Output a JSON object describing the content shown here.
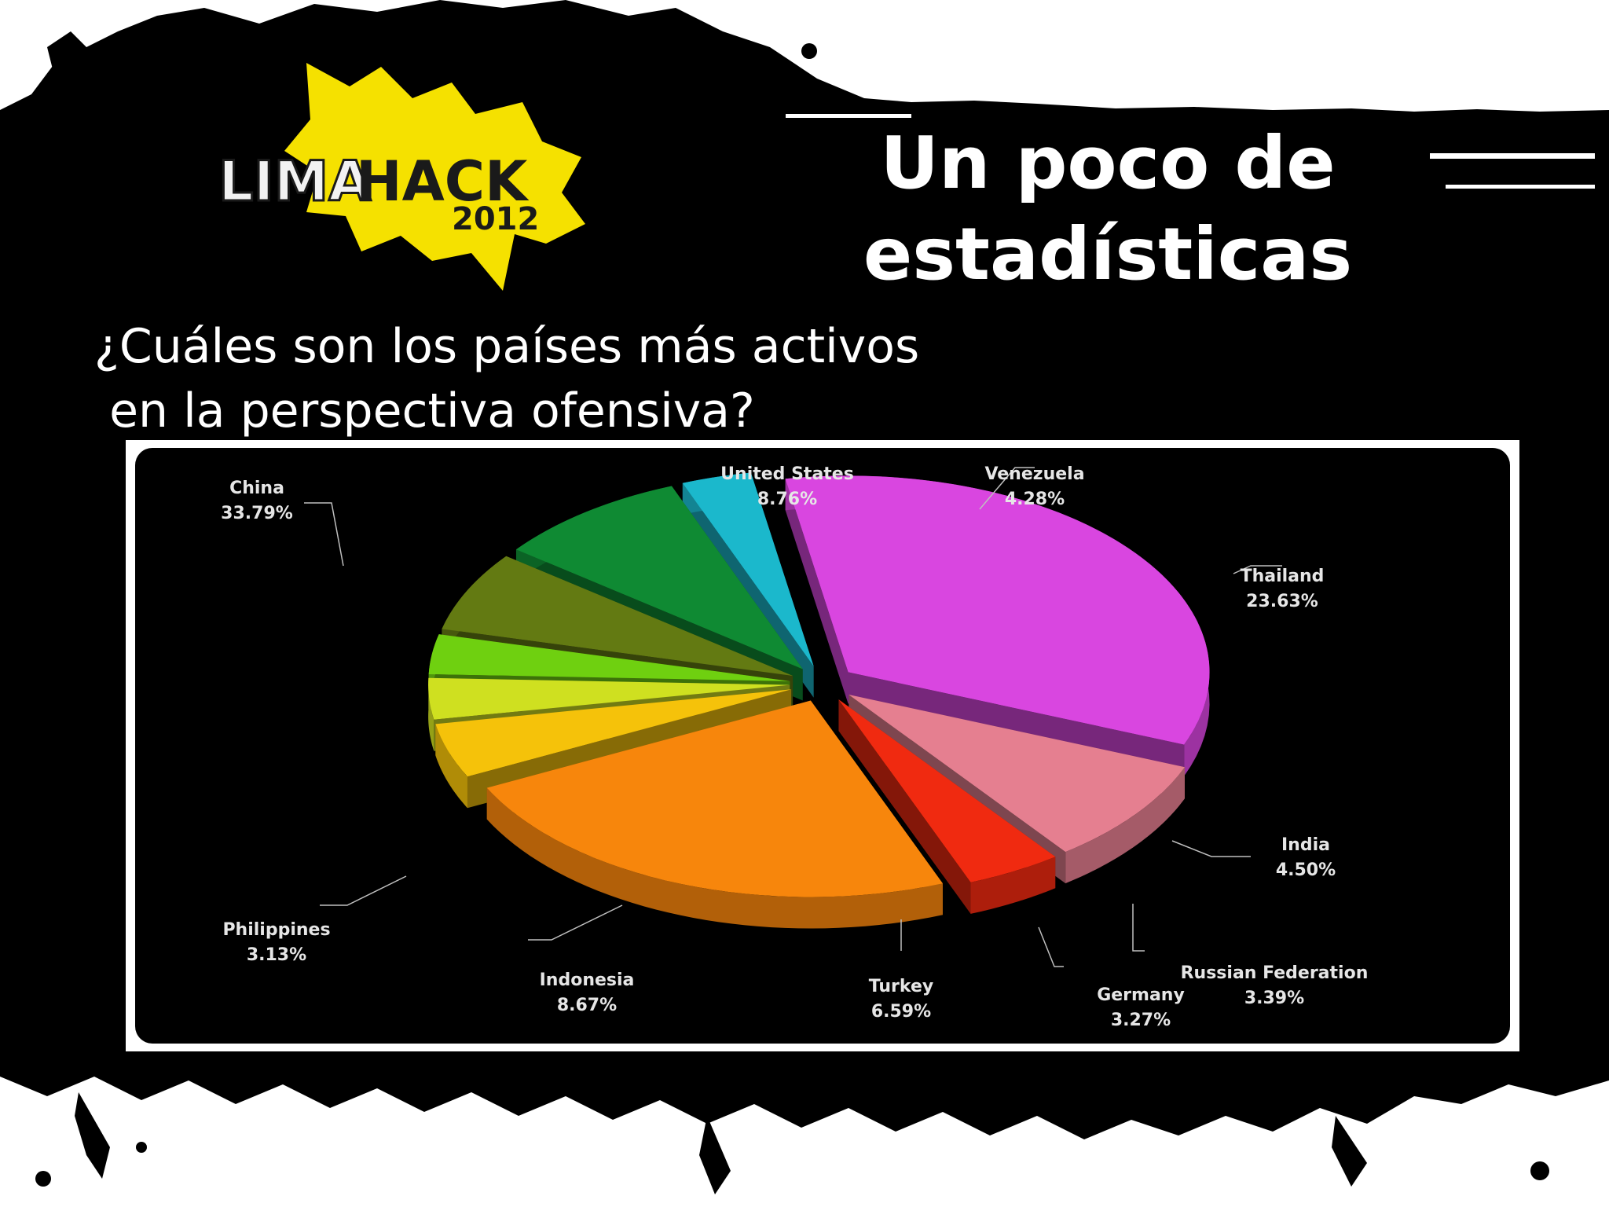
{
  "logo": {
    "brand_part1": "LIMA",
    "brand_part2": "HACK",
    "year": "2012",
    "colors": {
      "badge": "#f5e100",
      "text_light": "#f2f2f2",
      "text_dark": "#1a1a1a"
    }
  },
  "slide": {
    "title_line1": "Un poco de",
    "title_line2": "estadísticas",
    "question_line1": "¿Cuáles son los países más activos",
    "question_line2": " en la perspectiva ofensiva?"
  },
  "chart_data": {
    "type": "pie",
    "style": "3d-exploded",
    "legend": "none",
    "label_placement": "outside, with leader lines",
    "slices": [
      {
        "label": "China",
        "value": 33.79,
        "value_label": "33.79%",
        "color": "#d946e0"
      },
      {
        "label": "United States",
        "value": 8.76,
        "value_label": "8.76%",
        "color": "#e57f90"
      },
      {
        "label": "Venezuela",
        "value": 4.28,
        "value_label": "4.28%",
        "color": "#f02a10"
      },
      {
        "label": "Thailand",
        "value": 23.63,
        "value_label": "23.63%",
        "color": "#f7860c"
      },
      {
        "label": "India",
        "value": 4.5,
        "value_label": "4.50%",
        "color": "#f5c20a"
      },
      {
        "label": "Russian Federation",
        "value": 3.39,
        "value_label": "3.39%",
        "color": "#cfe020"
      },
      {
        "label": "Germany",
        "value": 3.27,
        "value_label": "3.27%",
        "color": "#6fd010"
      },
      {
        "label": "Turkey",
        "value": 6.59,
        "value_label": "6.59%",
        "color": "#637a12"
      },
      {
        "label": "Indonesia",
        "value": 8.67,
        "value_label": "8.67%",
        "color": "#0f8a33"
      },
      {
        "label": "Philippines",
        "value": 3.13,
        "value_label": "3.13%",
        "color": "#1bb8cc"
      }
    ]
  }
}
